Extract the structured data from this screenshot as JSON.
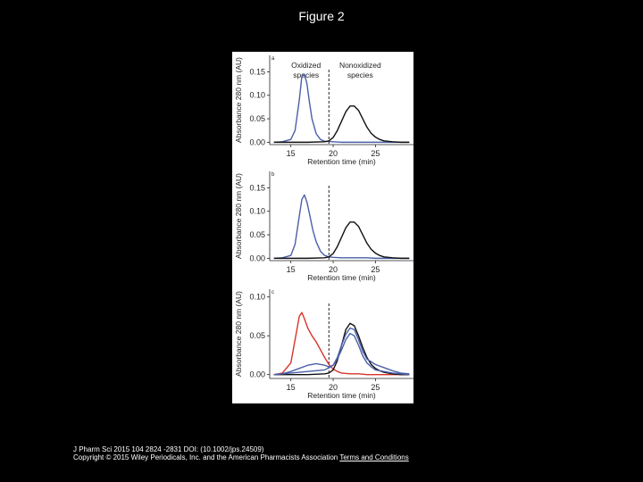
{
  "page": {
    "title": "Figure 2",
    "citation": "J Pharm Sci 2015 104 2824 -2831 DOI: (10.1002/jps.24509)",
    "copyright": "Copyright © 2015 Wiley Periodicals, Inc. and the American Pharmacists Association",
    "terms_link": "Terms and Conditions"
  },
  "colors": {
    "blue": "#4a5fa8",
    "red": "#d9332a",
    "black": "#111111"
  },
  "chart_data": [
    {
      "type": "line",
      "panel_label": "a",
      "xlabel": "Retention time (min)",
      "ylabel": "Absorbance 280 nm (AU)",
      "xlim": [
        12.5,
        29.5
      ],
      "ylim": [
        -0.005,
        0.185
      ],
      "xticks": [
        15,
        20,
        25
      ],
      "yticks": [
        0.0,
        0.05,
        0.1,
        0.15
      ],
      "ytick_labels": [
        "0.00",
        "0.05",
        "0.10",
        "0.15"
      ],
      "vline_x": 19.5,
      "annotations": [
        "Oxidized species",
        "Nonoxidized species"
      ],
      "series": [
        {
          "color": "#4a5fa8",
          "x": [
            13,
            14,
            15,
            15.5,
            16,
            16.3,
            16.6,
            16.9,
            17.2,
            17.5,
            18,
            18.5,
            19,
            20,
            21,
            22,
            23,
            24,
            25,
            26,
            27,
            28,
            29
          ],
          "y": [
            0,
            0.001,
            0.006,
            0.025,
            0.09,
            0.14,
            0.145,
            0.125,
            0.085,
            0.05,
            0.018,
            0.006,
            0.002,
            0.001,
            0,
            0,
            0,
            0,
            0,
            0,
            0,
            0,
            0
          ]
        },
        {
          "color": "#111111",
          "x": [
            13,
            15,
            17,
            19,
            19.5,
            20,
            20.5,
            21,
            21.5,
            22,
            22.5,
            23,
            23.5,
            24,
            24.5,
            25,
            25.5,
            26,
            27,
            28,
            29
          ],
          "y": [
            0,
            0,
            0,
            0.001,
            0.003,
            0.01,
            0.025,
            0.045,
            0.065,
            0.077,
            0.077,
            0.068,
            0.05,
            0.032,
            0.019,
            0.011,
            0.006,
            0.003,
            0.001,
            0,
            0
          ]
        }
      ]
    },
    {
      "type": "line",
      "panel_label": "b",
      "xlabel": "Retention time (min)",
      "ylabel": "Absorbance 280 nm (AU)",
      "xlim": [
        12.5,
        29.5
      ],
      "ylim": [
        -0.005,
        0.185
      ],
      "xticks": [
        15,
        20,
        25
      ],
      "yticks": [
        0.0,
        0.05,
        0.1,
        0.15
      ],
      "ytick_labels": [
        "0.00",
        "0.05",
        "0.10",
        "0.15"
      ],
      "vline_x": 19.5,
      "series": [
        {
          "color": "#4a5fa8",
          "x": [
            13,
            14,
            15,
            15.5,
            16,
            16.3,
            16.6,
            16.9,
            17.2,
            17.6,
            18,
            18.5,
            19,
            19.5,
            20,
            21,
            22,
            23,
            24,
            25,
            26,
            27,
            28,
            29
          ],
          "y": [
            0,
            0.001,
            0.006,
            0.03,
            0.09,
            0.125,
            0.135,
            0.12,
            0.095,
            0.06,
            0.035,
            0.015,
            0.006,
            0.003,
            0.002,
            0.001,
            0.001,
            0.001,
            0.001,
            0,
            0,
            0,
            0,
            0
          ]
        },
        {
          "color": "#111111",
          "x": [
            13,
            15,
            17,
            19,
            19.5,
            20,
            20.5,
            21,
            21.5,
            22,
            22.5,
            23,
            23.5,
            24,
            24.5,
            25,
            25.5,
            26,
            27,
            28,
            29
          ],
          "y": [
            0,
            0,
            0,
            0.001,
            0.003,
            0.01,
            0.025,
            0.045,
            0.065,
            0.077,
            0.077,
            0.068,
            0.05,
            0.032,
            0.019,
            0.011,
            0.006,
            0.003,
            0.001,
            0,
            0
          ]
        }
      ]
    },
    {
      "type": "line",
      "panel_label": "c",
      "xlabel": "Retention time (min)",
      "ylabel": "Absorbance 280 nm (AU)",
      "xlim": [
        12.5,
        29.5
      ],
      "ylim": [
        -0.005,
        0.11
      ],
      "xticks": [
        15,
        20,
        25
      ],
      "yticks": [
        0.0,
        0.05,
        0.1
      ],
      "ytick_labels": [
        "0.00",
        "0.05",
        "0.10"
      ],
      "vline_x": 19.5,
      "series": [
        {
          "color": "#d9332a",
          "x": [
            13,
            14,
            15,
            15.5,
            16,
            16.3,
            16.6,
            17,
            17.5,
            18,
            18.5,
            19,
            19.5,
            20,
            20.5,
            21,
            22,
            23,
            24,
            25,
            26,
            27,
            28,
            29
          ],
          "y": [
            0,
            0.002,
            0.015,
            0.045,
            0.075,
            0.08,
            0.072,
            0.06,
            0.05,
            0.042,
            0.032,
            0.022,
            0.013,
            0.007,
            0.004,
            0.002,
            0.001,
            0.001,
            0,
            0,
            0,
            0,
            0,
            0
          ]
        },
        {
          "color": "#111111",
          "x": [
            13,
            15,
            17,
            19,
            19.5,
            20,
            20.5,
            21,
            21.5,
            22,
            22.5,
            23,
            23.5,
            24,
            24.5,
            25,
            25.5,
            26,
            27,
            28,
            29
          ],
          "y": [
            0,
            0,
            0,
            0.001,
            0.002,
            0.006,
            0.018,
            0.038,
            0.058,
            0.066,
            0.063,
            0.05,
            0.035,
            0.022,
            0.013,
            0.008,
            0.005,
            0.003,
            0.001,
            0,
            0
          ]
        },
        {
          "color": "#4a5fa8",
          "x": [
            13,
            14,
            15,
            16,
            17,
            18,
            19,
            20,
            20.5,
            21,
            21.5,
            22,
            22.5,
            23,
            23.5,
            24,
            25,
            26,
            27,
            28,
            29
          ],
          "y": [
            0,
            0.001,
            0.002,
            0.003,
            0.004,
            0.005,
            0.006,
            0.012,
            0.022,
            0.038,
            0.052,
            0.06,
            0.058,
            0.045,
            0.03,
            0.02,
            0.013,
            0.009,
            0.005,
            0.002,
            0.001
          ]
        },
        {
          "color": "#4a5fa8",
          "x": [
            13,
            14,
            15,
            16,
            17,
            18,
            19,
            19.5,
            20,
            20.5,
            21,
            21.5,
            22,
            22.5,
            23,
            23.5,
            24,
            24.5,
            25,
            26,
            27,
            28,
            29
          ],
          "y": [
            0,
            0.001,
            0.004,
            0.008,
            0.012,
            0.014,
            0.012,
            0.01,
            0.012,
            0.02,
            0.032,
            0.045,
            0.053,
            0.05,
            0.038,
            0.024,
            0.015,
            0.01,
            0.006,
            0.004,
            0.002,
            0.001,
            0
          ]
        }
      ]
    }
  ]
}
